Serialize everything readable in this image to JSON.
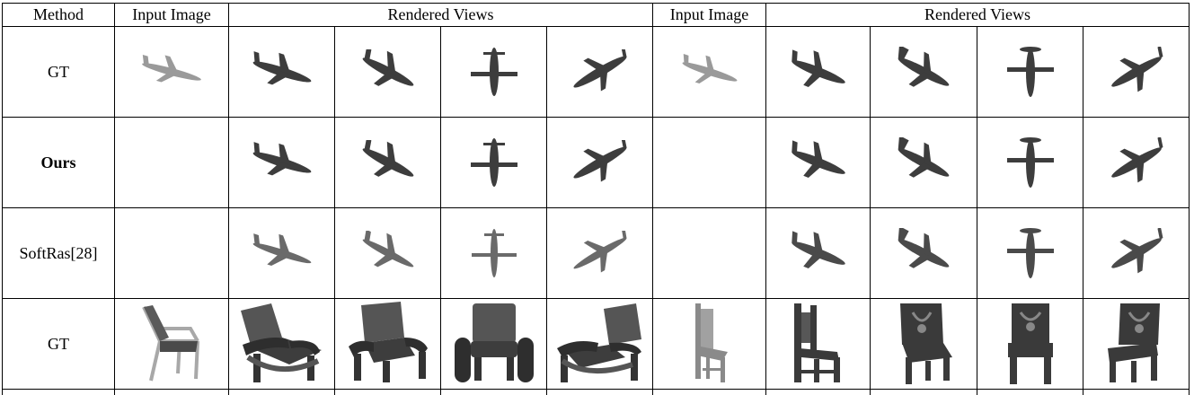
{
  "headers": {
    "method": "Method",
    "input_image_1": "Input Image",
    "rendered_views_1": "Rendered Views",
    "input_image_2": "Input Image",
    "rendered_views_2": "Rendered Views"
  },
  "rows": [
    {
      "method": "GT",
      "subject": "airplane",
      "has_input": true
    },
    {
      "method": "Ours",
      "subject": "airplane",
      "has_input": false
    },
    {
      "method": "SoftRas[28]",
      "subject": "airplane",
      "has_input": false
    },
    {
      "method": "GT",
      "subject": "chair",
      "has_input": true
    }
  ],
  "colors": {
    "render_dark": "#3d3d3d",
    "render_mid": "#6a6a6a",
    "input_light": "#9a9a9a"
  }
}
